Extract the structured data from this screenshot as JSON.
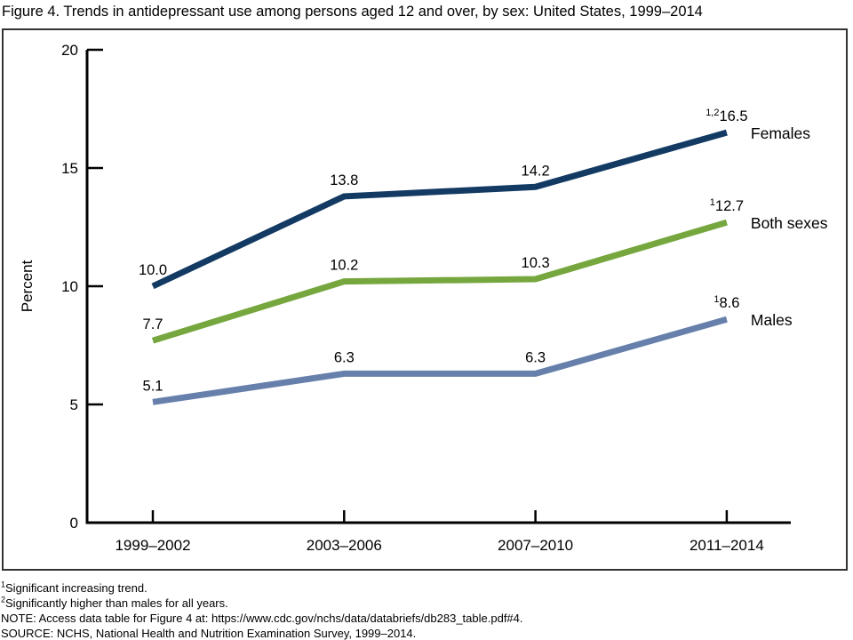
{
  "chart_data": {
    "type": "line",
    "title": "Figure 4. Trends in antidepressant use among persons aged 12 and over, by sex: United States, 1999–2014",
    "categories": [
      "1999–2002",
      "2003–2006",
      "2007–2010",
      "2011–2014"
    ],
    "series": [
      {
        "name": "Females",
        "color": "#133a63",
        "values": [
          10.0,
          13.8,
          14.2,
          16.5
        ],
        "labels": [
          "10.0",
          "13.8",
          "14.2",
          "16.5"
        ],
        "last_superscript": "1,2"
      },
      {
        "name": "Both sexes",
        "color": "#76a73e",
        "values": [
          7.7,
          10.2,
          10.3,
          12.7
        ],
        "labels": [
          "7.7",
          "10.2",
          "10.3",
          "12.7"
        ],
        "last_superscript": "1"
      },
      {
        "name": "Males",
        "color": "#6780ab",
        "values": [
          5.1,
          6.3,
          6.3,
          8.6
        ],
        "labels": [
          "5.1",
          "6.3",
          "6.3",
          "8.6"
        ],
        "last_superscript": "1"
      }
    ],
    "xlabel": "",
    "ylabel": "Percent",
    "ylim": [
      0,
      20
    ],
    "yticks": [
      0,
      5,
      10,
      15,
      20
    ],
    "grid": false,
    "legend_position": "right-of-last-point"
  },
  "footnotes": [
    {
      "superscript": "1",
      "text": "Significant increasing trend."
    },
    {
      "superscript": "2",
      "text": "Significantly higher than males for all years."
    },
    {
      "superscript": "",
      "text": "NOTE: Access data table for Figure 4 at: https://www.cdc.gov/nchs/data/databriefs/db283_table.pdf#4."
    },
    {
      "superscript": "",
      "text": "SOURCE: NCHS, National Health and Nutrition Examination Survey, 1999–2014."
    }
  ]
}
